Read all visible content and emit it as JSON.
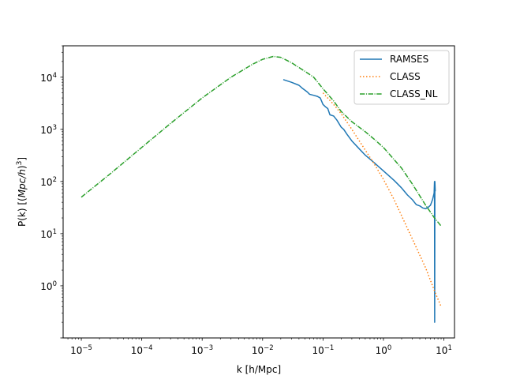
{
  "chart_data": {
    "type": "line",
    "title": "",
    "xlabel": "k [h/Mpc]",
    "ylabel_parts": [
      "P(k) [(",
      "Mpc/h",
      ")",
      "3",
      "]"
    ],
    "xscale": "log",
    "yscale": "log",
    "xlim": [
      5e-06,
      15
    ],
    "ylim": [
      0.1,
      40000
    ],
    "grid": false,
    "legend_position": "top-right",
    "x_ticks": [
      {
        "value": 1e-05,
        "base": "10",
        "exp": "−5"
      },
      {
        "value": 0.0001,
        "base": "10",
        "exp": "−4"
      },
      {
        "value": 0.001,
        "base": "10",
        "exp": "−3"
      },
      {
        "value": 0.01,
        "base": "10",
        "exp": "−2"
      },
      {
        "value": 0.1,
        "base": "10",
        "exp": "−1"
      },
      {
        "value": 1,
        "base": "10",
        "exp": "0"
      },
      {
        "value": 10,
        "base": "10",
        "exp": "1"
      }
    ],
    "y_ticks": [
      {
        "value": 1,
        "base": "10",
        "exp": "0"
      },
      {
        "value": 10,
        "base": "10",
        "exp": "1"
      },
      {
        "value": 100,
        "base": "10",
        "exp": "2"
      },
      {
        "value": 1000,
        "base": "10",
        "exp": "3"
      },
      {
        "value": 10000,
        "base": "10",
        "exp": "4"
      }
    ],
    "series": [
      {
        "name": "RAMSES",
        "color": "#1f77b4",
        "dash": "solid",
        "points": [
          [
            0.022,
            9000
          ],
          [
            0.03,
            8000
          ],
          [
            0.04,
            7000
          ],
          [
            0.045,
            6200
          ],
          [
            0.055,
            5200
          ],
          [
            0.06,
            4700
          ],
          [
            0.07,
            4500
          ],
          [
            0.08,
            4300
          ],
          [
            0.09,
            4000
          ],
          [
            0.1,
            3000
          ],
          [
            0.11,
            2700
          ],
          [
            0.12,
            2500
          ],
          [
            0.13,
            1900
          ],
          [
            0.15,
            1800
          ],
          [
            0.17,
            1500
          ],
          [
            0.2,
            1100
          ],
          [
            0.22,
            1000
          ],
          [
            0.25,
            800
          ],
          [
            0.3,
            600
          ],
          [
            0.4,
            420
          ],
          [
            0.5,
            320
          ],
          [
            0.7,
            230
          ],
          [
            1.0,
            160
          ],
          [
            1.5,
            105
          ],
          [
            2.0,
            75
          ],
          [
            2.5,
            55
          ],
          [
            3.0,
            45
          ],
          [
            3.5,
            36
          ],
          [
            4.0,
            34
          ],
          [
            4.5,
            31
          ],
          [
            5.0,
            30
          ],
          [
            5.5,
            32
          ],
          [
            6.0,
            35
          ],
          [
            6.5,
            45
          ],
          [
            6.9,
            60
          ],
          [
            7.0,
            100
          ],
          [
            7.05,
            0.2
          ],
          [
            7.1,
            100
          ],
          [
            7.2,
            65
          ]
        ]
      },
      {
        "name": "CLASS",
        "color": "#ff7f0e",
        "dash": "dotted",
        "points": [
          [
            0.1,
            5000
          ],
          [
            0.15,
            3000
          ],
          [
            0.2,
            2000
          ],
          [
            0.3,
            1000
          ],
          [
            0.5,
            400
          ],
          [
            0.7,
            220
          ],
          [
            1.0,
            110
          ],
          [
            1.5,
            45
          ],
          [
            2.0,
            22
          ],
          [
            3.0,
            8
          ],
          [
            5.0,
            2.2
          ],
          [
            7.0,
            0.8
          ],
          [
            9.0,
            0.4
          ]
        ]
      },
      {
        "name": "CLASS_NL",
        "color": "#2ca02c",
        "dash": "dashdot",
        "points": [
          [
            1e-05,
            50
          ],
          [
            3e-05,
            140
          ],
          [
            0.0001,
            450
          ],
          [
            0.0003,
            1300
          ],
          [
            0.001,
            4000
          ],
          [
            0.003,
            10000
          ],
          [
            0.007,
            18000
          ],
          [
            0.01,
            22000
          ],
          [
            0.015,
            25000
          ],
          [
            0.02,
            24000
          ],
          [
            0.03,
            19000
          ],
          [
            0.05,
            13000
          ],
          [
            0.07,
            10000
          ],
          [
            0.1,
            6000
          ],
          [
            0.15,
            3500
          ],
          [
            0.2,
            2200
          ],
          [
            0.3,
            1400
          ],
          [
            0.5,
            900
          ],
          [
            0.7,
            650
          ],
          [
            1.0,
            450
          ],
          [
            2.0,
            180
          ],
          [
            3.0,
            90
          ],
          [
            5.0,
            35
          ],
          [
            7.0,
            20
          ],
          [
            9.0,
            14
          ]
        ]
      }
    ]
  }
}
